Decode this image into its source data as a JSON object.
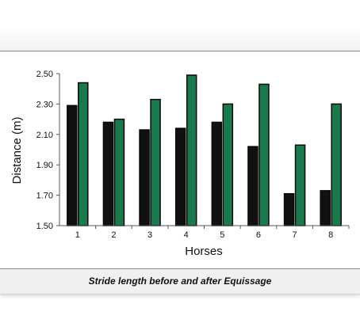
{
  "caption": "Stride length before and after Equissage",
  "colors": {
    "before": "#111111",
    "after": "#1b7a4d",
    "outline": "#0a0a0a"
  },
  "chart_data": {
    "type": "bar",
    "categories": [
      "1",
      "2",
      "3",
      "4",
      "5",
      "6",
      "7",
      "8"
    ],
    "series": [
      {
        "values": [
          2.29,
          2.18,
          2.13,
          2.14,
          2.18,
          2.02,
          1.71,
          1.73
        ]
      },
      {
        "values": [
          2.44,
          2.2,
          2.33,
          2.49,
          2.3,
          2.43,
          2.03,
          2.3
        ]
      }
    ],
    "xlabel": "Horses",
    "ylabel": "Distance (m)",
    "ylim": [
      1.5,
      2.5
    ],
    "yticks": [
      "1.50",
      "1.70",
      "1.90",
      "2.10",
      "2.30",
      "2.50"
    ],
    "grid": false,
    "legend": "none"
  }
}
